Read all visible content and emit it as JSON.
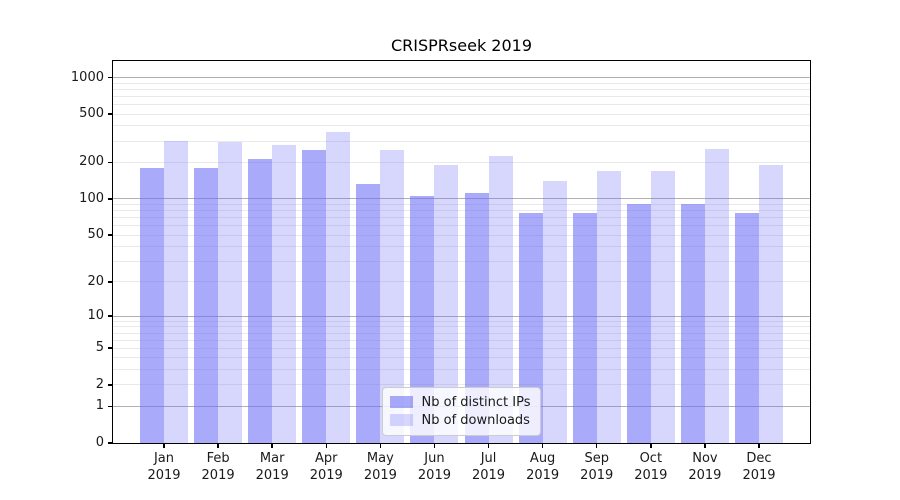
{
  "chart_data": {
    "type": "bar",
    "title": "CRISPRseek 2019",
    "categories": [
      "Jan",
      "Feb",
      "Mar",
      "Apr",
      "May",
      "Jun",
      "Jul",
      "Aug",
      "Sep",
      "Oct",
      "Nov",
      "Dec"
    ],
    "year": "2019",
    "series": [
      {
        "name": "Nb of distinct IPs",
        "color": "rgba(108,108,246,0.58)",
        "values": [
          179,
          181,
          215,
          254,
          133,
          105,
          112,
          76,
          77,
          91,
          90,
          77
        ]
      },
      {
        "name": "Nb of downloads",
        "color": "rgba(108,108,246,0.27)",
        "values": [
          301,
          295,
          279,
          355,
          255,
          189,
          225,
          142,
          170,
          171,
          256,
          189
        ]
      }
    ],
    "y_ticks": [
      0,
      1,
      2,
      5,
      10,
      20,
      50,
      100,
      200,
      500,
      1000
    ],
    "y_scale": "log10(1+v)",
    "ylim": [
      0,
      1368
    ],
    "grid": "horizontal, major at powers of 10, faint minors between",
    "legend_position": "lower center",
    "colors": {
      "grid_major": "#b0b0b0",
      "grid_minor": "#e9e9e9",
      "spine": "#000000",
      "text": "#1a1a1a"
    }
  }
}
